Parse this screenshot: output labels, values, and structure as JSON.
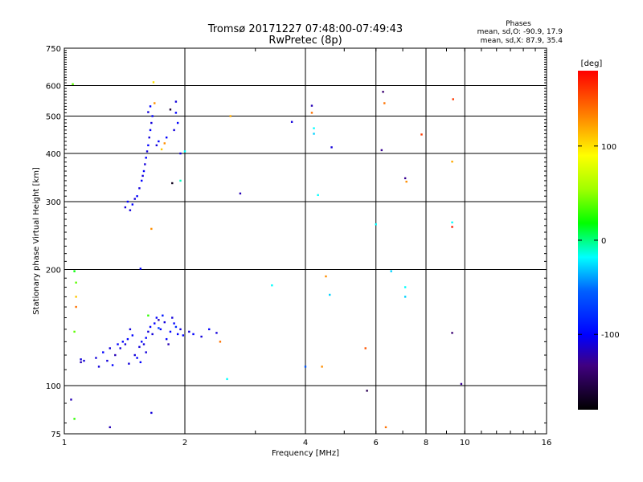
{
  "chart_data": {
    "type": "scatter",
    "title": "Tromsø 20171227 07:48:00-07:49:43",
    "subtitle": "RwPretec (8p)",
    "xlabel": "Frequency [MHz]",
    "ylabel": "Stationary phase Virtual Height [km]",
    "x_scale": "log",
    "y_scale": "log",
    "xlim": [
      1,
      16
    ],
    "ylim": [
      75,
      750
    ],
    "x_ticks": [
      1,
      2,
      4,
      6,
      8,
      10,
      16
    ],
    "y_ticks": [
      75,
      100,
      200,
      300,
      400,
      500,
      600,
      750
    ],
    "grid": true,
    "phases_box": {
      "title": "Phases",
      "line_o": "mean, sd,O: -90.9, 17.9",
      "line_x": "mean, sd,X:  87.9, 35.4"
    },
    "colorbar": {
      "label": "[deg]",
      "range": [
        -180,
        180
      ],
      "ticks": [
        100,
        0,
        -100
      ],
      "colormap": "rainbow"
    },
    "points": [
      {
        "x": 1.05,
        "y": 605,
        "p": 40
      },
      {
        "x": 1.04,
        "y": 92,
        "p": -120
      },
      {
        "x": 1.06,
        "y": 82,
        "p": 30
      },
      {
        "x": 1.06,
        "y": 198,
        "p": 20
      },
      {
        "x": 1.07,
        "y": 185,
        "p": 40
      },
      {
        "x": 1.07,
        "y": 170,
        "p": 110
      },
      {
        "x": 1.07,
        "y": 160,
        "p": 140
      },
      {
        "x": 1.06,
        "y": 138,
        "p": 40
      },
      {
        "x": 1.1,
        "y": 117,
        "p": -110
      },
      {
        "x": 1.1,
        "y": 115,
        "p": -120
      },
      {
        "x": 1.12,
        "y": 116,
        "p": -110
      },
      {
        "x": 1.2,
        "y": 118,
        "p": -110
      },
      {
        "x": 1.25,
        "y": 122,
        "p": -100
      },
      {
        "x": 1.3,
        "y": 125,
        "p": -110
      },
      {
        "x": 1.34,
        "y": 120,
        "p": -120
      },
      {
        "x": 1.36,
        "y": 128,
        "p": -100
      },
      {
        "x": 1.38,
        "y": 125,
        "p": -110
      },
      {
        "x": 1.4,
        "y": 130,
        "p": -100
      },
      {
        "x": 1.42,
        "y": 128,
        "p": -110
      },
      {
        "x": 1.44,
        "y": 132,
        "p": -100
      },
      {
        "x": 1.46,
        "y": 140,
        "p": -110
      },
      {
        "x": 1.48,
        "y": 135,
        "p": -100
      },
      {
        "x": 1.5,
        "y": 120,
        "p": -110
      },
      {
        "x": 1.52,
        "y": 118,
        "p": -100
      },
      {
        "x": 1.54,
        "y": 126,
        "p": -110
      },
      {
        "x": 1.56,
        "y": 130,
        "p": -100
      },
      {
        "x": 1.58,
        "y": 128,
        "p": -110
      },
      {
        "x": 1.6,
        "y": 133,
        "p": -100
      },
      {
        "x": 1.62,
        "y": 138,
        "p": -110
      },
      {
        "x": 1.64,
        "y": 142,
        "p": -100
      },
      {
        "x": 1.66,
        "y": 136,
        "p": -110
      },
      {
        "x": 1.68,
        "y": 145,
        "p": -100
      },
      {
        "x": 1.7,
        "y": 150,
        "p": -100
      },
      {
        "x": 1.72,
        "y": 148,
        "p": -120
      },
      {
        "x": 1.74,
        "y": 140,
        "p": -100
      },
      {
        "x": 1.76,
        "y": 152,
        "p": -90
      },
      {
        "x": 1.78,
        "y": 146,
        "p": -110
      },
      {
        "x": 1.8,
        "y": 132,
        "p": -100
      },
      {
        "x": 1.82,
        "y": 128,
        "p": -120
      },
      {
        "x": 1.84,
        "y": 138,
        "p": -100
      },
      {
        "x": 1.86,
        "y": 150,
        "p": -110
      },
      {
        "x": 1.88,
        "y": 145,
        "p": -100
      },
      {
        "x": 1.9,
        "y": 142,
        "p": -80
      },
      {
        "x": 1.92,
        "y": 136,
        "p": -100
      },
      {
        "x": 1.95,
        "y": 140,
        "p": -110
      },
      {
        "x": 1.98,
        "y": 135,
        "p": -100
      },
      {
        "x": 2.05,
        "y": 138,
        "p": -110
      },
      {
        "x": 2.1,
        "y": 136,
        "p": -100
      },
      {
        "x": 2.2,
        "y": 134,
        "p": -110
      },
      {
        "x": 2.3,
        "y": 140,
        "p": -100
      },
      {
        "x": 2.4,
        "y": 137,
        "p": -110
      },
      {
        "x": 2.45,
        "y": 130,
        "p": 140
      },
      {
        "x": 2.55,
        "y": 104,
        "p": -20
      },
      {
        "x": 1.22,
        "y": 112,
        "p": -110
      },
      {
        "x": 1.28,
        "y": 116,
        "p": -110
      },
      {
        "x": 1.32,
        "y": 113,
        "p": -100
      },
      {
        "x": 1.45,
        "y": 114,
        "p": -110
      },
      {
        "x": 1.55,
        "y": 115,
        "p": -100
      },
      {
        "x": 1.6,
        "y": 122,
        "p": -110
      },
      {
        "x": 1.3,
        "y": 78,
        "p": -120
      },
      {
        "x": 1.65,
        "y": 85,
        "p": -110
      },
      {
        "x": 1.55,
        "y": 201,
        "p": -100
      },
      {
        "x": 1.62,
        "y": 152,
        "p": 30
      },
      {
        "x": 1.72,
        "y": 141,
        "p": -70
      },
      {
        "x": 1.42,
        "y": 290,
        "p": -110
      },
      {
        "x": 1.44,
        "y": 300,
        "p": -100
      },
      {
        "x": 1.46,
        "y": 285,
        "p": -110
      },
      {
        "x": 1.48,
        "y": 295,
        "p": -100
      },
      {
        "x": 1.5,
        "y": 305,
        "p": -110
      },
      {
        "x": 1.52,
        "y": 310,
        "p": -100
      },
      {
        "x": 1.54,
        "y": 325,
        "p": -110
      },
      {
        "x": 1.56,
        "y": 340,
        "p": -100
      },
      {
        "x": 1.57,
        "y": 350,
        "p": -110
      },
      {
        "x": 1.58,
        "y": 360,
        "p": -100
      },
      {
        "x": 1.59,
        "y": 375,
        "p": -110
      },
      {
        "x": 1.6,
        "y": 390,
        "p": -100
      },
      {
        "x": 1.61,
        "y": 405,
        "p": -110
      },
      {
        "x": 1.62,
        "y": 420,
        "p": -100
      },
      {
        "x": 1.63,
        "y": 440,
        "p": -110
      },
      {
        "x": 1.64,
        "y": 460,
        "p": -100
      },
      {
        "x": 1.65,
        "y": 480,
        "p": -110
      },
      {
        "x": 1.66,
        "y": 500,
        "p": -100
      },
      {
        "x": 1.62,
        "y": 512,
        "p": -110
      },
      {
        "x": 1.64,
        "y": 530,
        "p": -100
      },
      {
        "x": 1.65,
        "y": 255,
        "p": 130
      },
      {
        "x": 1.67,
        "y": 612,
        "p": 100
      },
      {
        "x": 1.68,
        "y": 540,
        "p": 130
      },
      {
        "x": 1.7,
        "y": 420,
        "p": -110
      },
      {
        "x": 1.72,
        "y": 430,
        "p": -100
      },
      {
        "x": 1.75,
        "y": 410,
        "p": 110
      },
      {
        "x": 1.78,
        "y": 425,
        "p": 130
      },
      {
        "x": 1.8,
        "y": 440,
        "p": -100
      },
      {
        "x": 1.84,
        "y": 520,
        "p": -160
      },
      {
        "x": 1.86,
        "y": 335,
        "p": -170
      },
      {
        "x": 1.88,
        "y": 460,
        "p": -110
      },
      {
        "x": 1.9,
        "y": 510,
        "p": -100
      },
      {
        "x": 1.9,
        "y": 545,
        "p": -110
      },
      {
        "x": 1.92,
        "y": 480,
        "p": -100
      },
      {
        "x": 1.95,
        "y": 340,
        "p": -10
      },
      {
        "x": 1.95,
        "y": 400,
        "p": -110
      },
      {
        "x": 2.0,
        "y": 405,
        "p": -20
      },
      {
        "x": 2.6,
        "y": 500,
        "p": 120
      },
      {
        "x": 2.75,
        "y": 315,
        "p": -120
      },
      {
        "x": 3.3,
        "y": 182,
        "p": -20
      },
      {
        "x": 3.7,
        "y": 483,
        "p": -110
      },
      {
        "x": 4.0,
        "y": 112,
        "p": -60
      },
      {
        "x": 4.15,
        "y": 532,
        "p": -120
      },
      {
        "x": 4.15,
        "y": 510,
        "p": 140
      },
      {
        "x": 4.2,
        "y": 465,
        "p": -20
      },
      {
        "x": 4.2,
        "y": 450,
        "p": -30
      },
      {
        "x": 4.3,
        "y": 312,
        "p": -20
      },
      {
        "x": 4.4,
        "y": 112,
        "p": 130
      },
      {
        "x": 4.5,
        "y": 192,
        "p": 130
      },
      {
        "x": 4.6,
        "y": 172,
        "p": -30
      },
      {
        "x": 4.65,
        "y": 415,
        "p": -110
      },
      {
        "x": 5.65,
        "y": 125,
        "p": 150
      },
      {
        "x": 5.7,
        "y": 97,
        "p": -150
      },
      {
        "x": 6.0,
        "y": 262,
        "p": -20
      },
      {
        "x": 6.2,
        "y": 408,
        "p": -130
      },
      {
        "x": 6.25,
        "y": 578,
        "p": -140
      },
      {
        "x": 6.3,
        "y": 540,
        "p": 140
      },
      {
        "x": 6.35,
        "y": 78,
        "p": 140
      },
      {
        "x": 6.55,
        "y": 198,
        "p": -30
      },
      {
        "x": 7.1,
        "y": 345,
        "p": -130
      },
      {
        "x": 7.15,
        "y": 338,
        "p": 130
      },
      {
        "x": 7.1,
        "y": 180,
        "p": -20
      },
      {
        "x": 7.1,
        "y": 170,
        "p": -30
      },
      {
        "x": 7.8,
        "y": 448,
        "p": 160
      },
      {
        "x": 9.3,
        "y": 265,
        "p": -20
      },
      {
        "x": 9.3,
        "y": 258,
        "p": 170
      },
      {
        "x": 9.3,
        "y": 381,
        "p": 120
      },
      {
        "x": 9.35,
        "y": 553,
        "p": 160
      },
      {
        "x": 9.3,
        "y": 137,
        "p": -140
      },
      {
        "x": 9.8,
        "y": 101,
        "p": -130
      }
    ]
  }
}
